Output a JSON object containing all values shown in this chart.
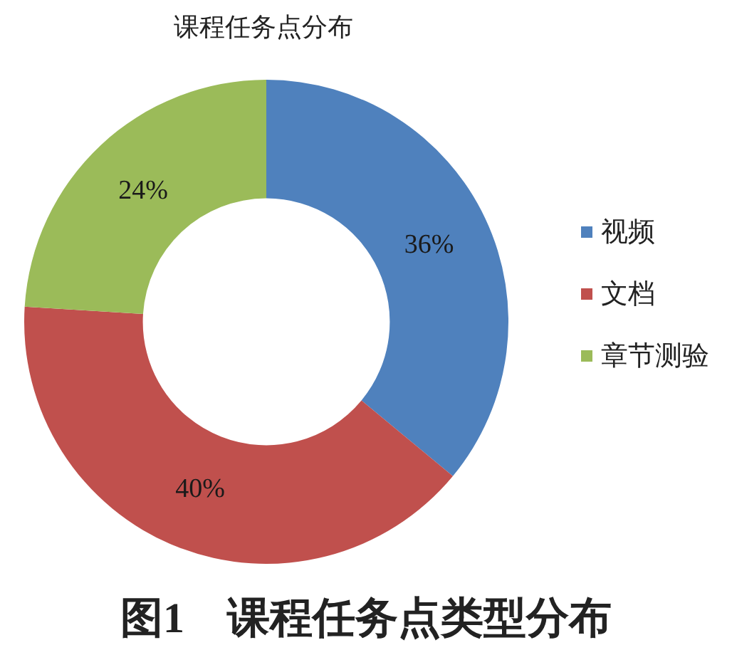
{
  "chart_data": {
    "type": "donut",
    "title": "课程任务点分布",
    "categories": [
      "视频",
      "文档",
      "章节测验"
    ],
    "values": [
      36,
      40,
      24
    ],
    "colors": [
      "#4f81bd",
      "#c0504d",
      "#9bbb59"
    ],
    "value_labels": [
      "36%",
      "40%",
      "24%"
    ],
    "legend": "right",
    "annotations": [
      "图1　课程任务点类型分布"
    ]
  }
}
